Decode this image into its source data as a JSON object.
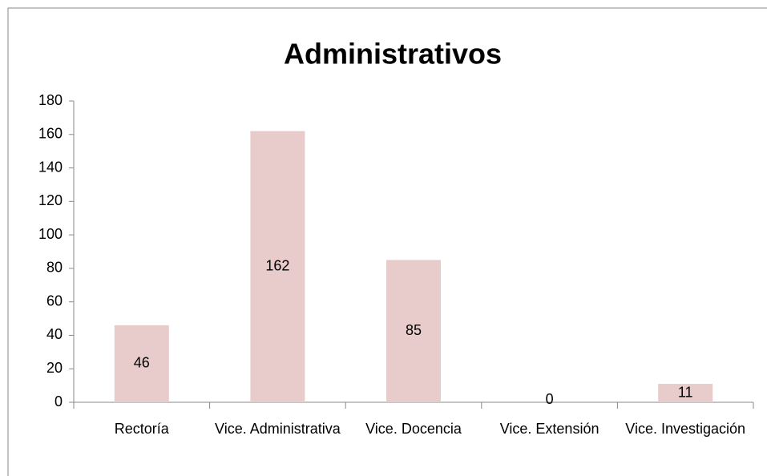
{
  "chart_data": {
    "type": "bar",
    "title": "Administrativos",
    "categories": [
      "Rectoría",
      "Vice. Administrativa",
      "Vice. Docencia",
      "Vice. Extensión",
      "Vice. Investigación"
    ],
    "values": [
      46,
      162,
      85,
      0,
      11
    ],
    "color": "#e8cbcb",
    "ylim": [
      0,
      180
    ],
    "yticks": [
      0,
      20,
      40,
      60,
      80,
      100,
      120,
      140,
      160,
      180
    ],
    "grid": false
  }
}
